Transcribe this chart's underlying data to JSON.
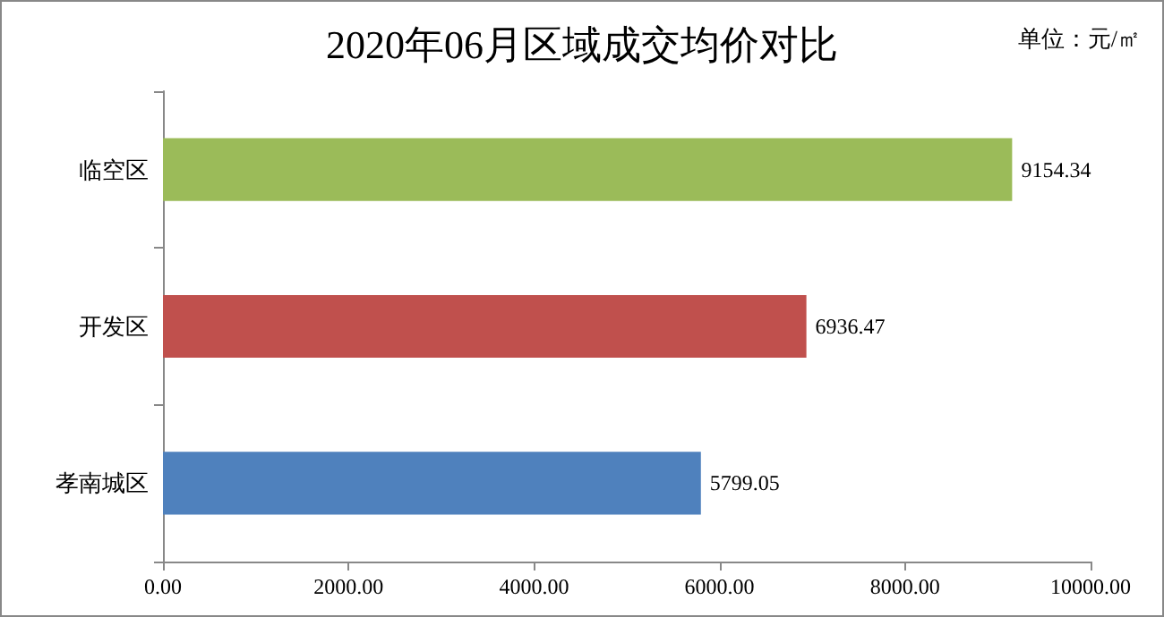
{
  "chart_data": {
    "type": "bar",
    "orientation": "horizontal",
    "title": "2020年06月区域成交均价对比",
    "annotations": [
      "单位：元/㎡"
    ],
    "categories": [
      "临空区",
      "开发区",
      "孝南城区"
    ],
    "values": [
      9154.34,
      6936.47,
      5799.05
    ],
    "colors": [
      "#9bbb59",
      "#c0504d",
      "#4f81bd"
    ],
    "xlim": [
      0,
      10000
    ],
    "xticks": [
      {
        "value": 0,
        "label": "0.00"
      },
      {
        "value": 2000,
        "label": "2000.00"
      },
      {
        "value": 4000,
        "label": "4000.00"
      },
      {
        "value": 6000,
        "label": "6000.00"
      },
      {
        "value": 8000,
        "label": "8000.00"
      },
      {
        "value": 10000,
        "label": "10000.00"
      }
    ],
    "data_labels": true
  }
}
